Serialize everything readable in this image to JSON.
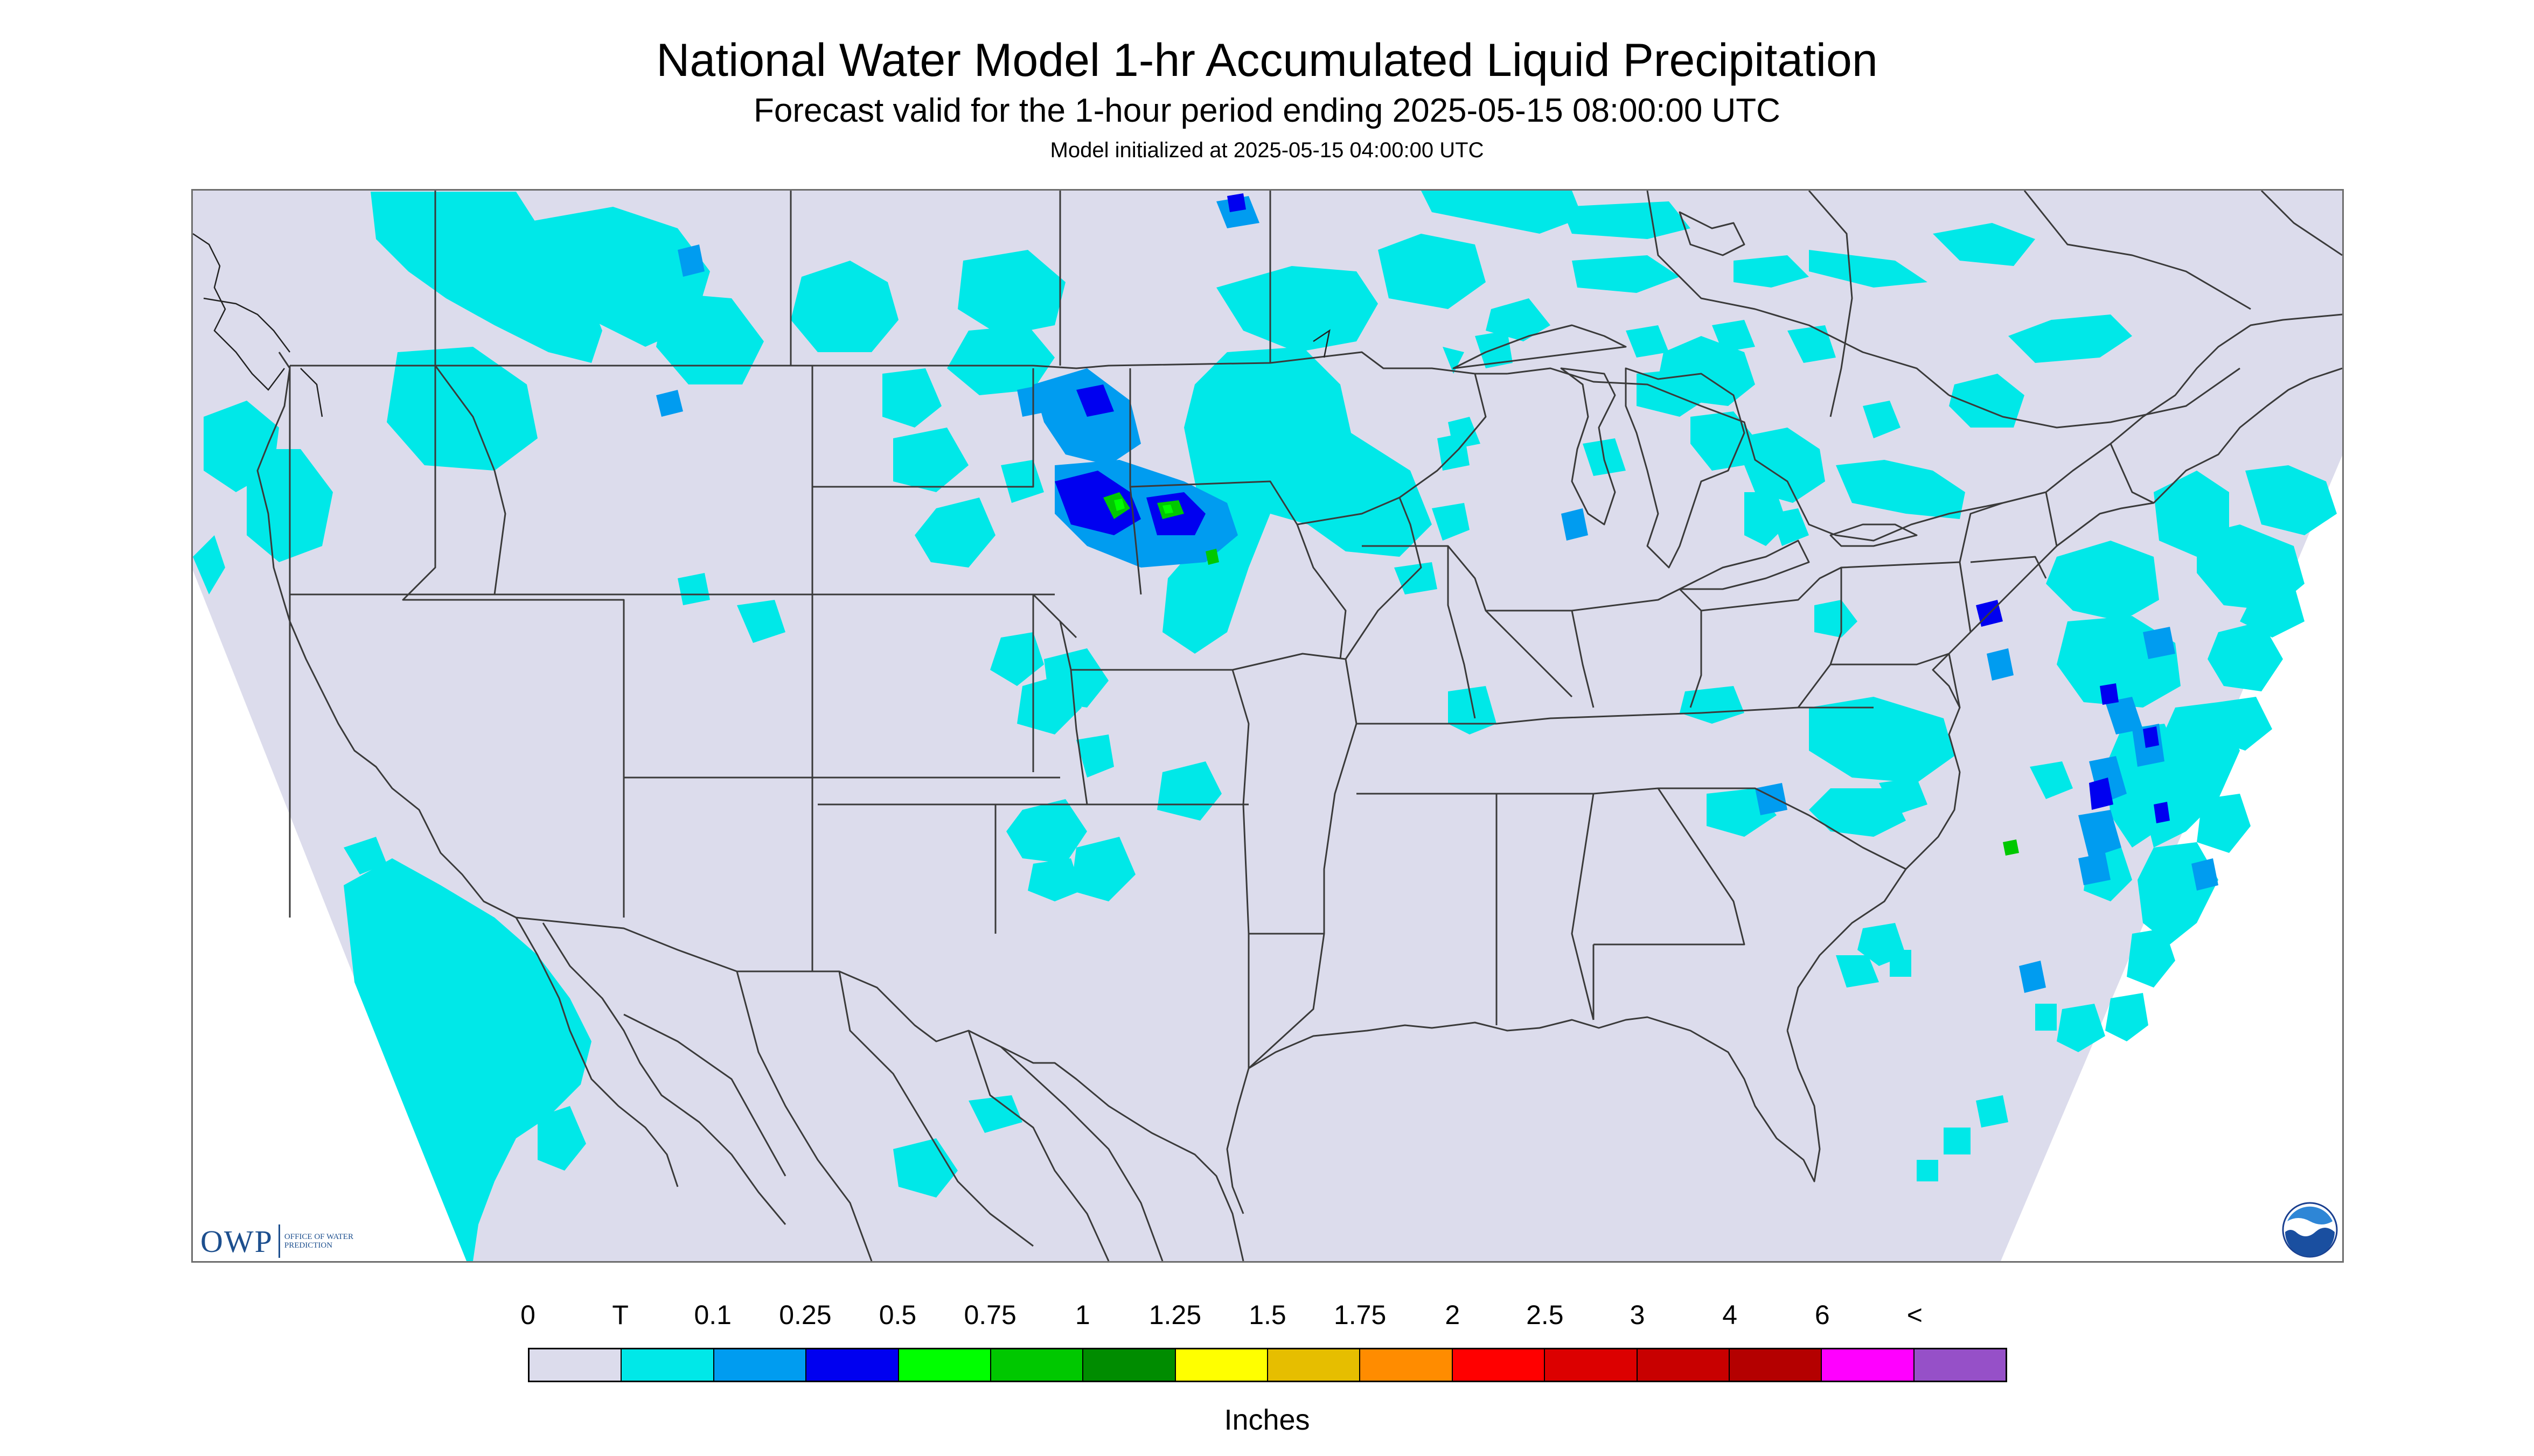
{
  "header": {
    "title": "National Water Model 1-hr Accumulated Liquid Precipitation",
    "subtitle": "Forecast valid for the 1-hour period ending 2025-05-15 08:00:00 UTC",
    "init": "Model initialized at 2025-05-15 04:00:00 UTC"
  },
  "logos": {
    "owp_letters": "OWP",
    "owp_text": "OFFICE OF WATER PREDICTION",
    "noaa": "NOAA"
  },
  "map": {
    "region": "Contiguous United States",
    "background_color": "#dcdcec",
    "outside_color": "#ffffff",
    "line_color": "#3a3a3a",
    "rain_areas": [
      {
        "area": "Pacific Northwest / northern Rockies",
        "level": "T"
      },
      {
        "area": "Northern Plains, North Dakota / South Dakota",
        "level": "0.25-0.75"
      },
      {
        "area": "Upper Great Lakes",
        "level": "T-0.1"
      },
      {
        "area": "Ohio Valley / Kentucky",
        "level": "T"
      },
      {
        "area": "Mid-Atlantic / Northeast coast",
        "level": "T-0.5"
      },
      {
        "area": "Offshore Atlantic",
        "level": "T-0.5"
      },
      {
        "area": "Pacific offshore (west)",
        "level": "T"
      }
    ]
  },
  "legend": {
    "labels": [
      "0",
      "T",
      "0.1",
      "0.25",
      "0.5",
      "0.75",
      "1",
      "1.25",
      "1.5",
      "1.75",
      "2",
      "2.5",
      "3",
      "4",
      "6",
      "<"
    ],
    "colors": [
      "#dcdcec",
      "#00e8e8",
      "#009cf0",
      "#0000f0",
      "#00ff00",
      "#00c800",
      "#008c00",
      "#ffff00",
      "#e6be00",
      "#ff8c00",
      "#ff0000",
      "#dc0000",
      "#c80000",
      "#b40000",
      "#ff00ff",
      "#9650c8"
    ],
    "units": "Inches"
  }
}
